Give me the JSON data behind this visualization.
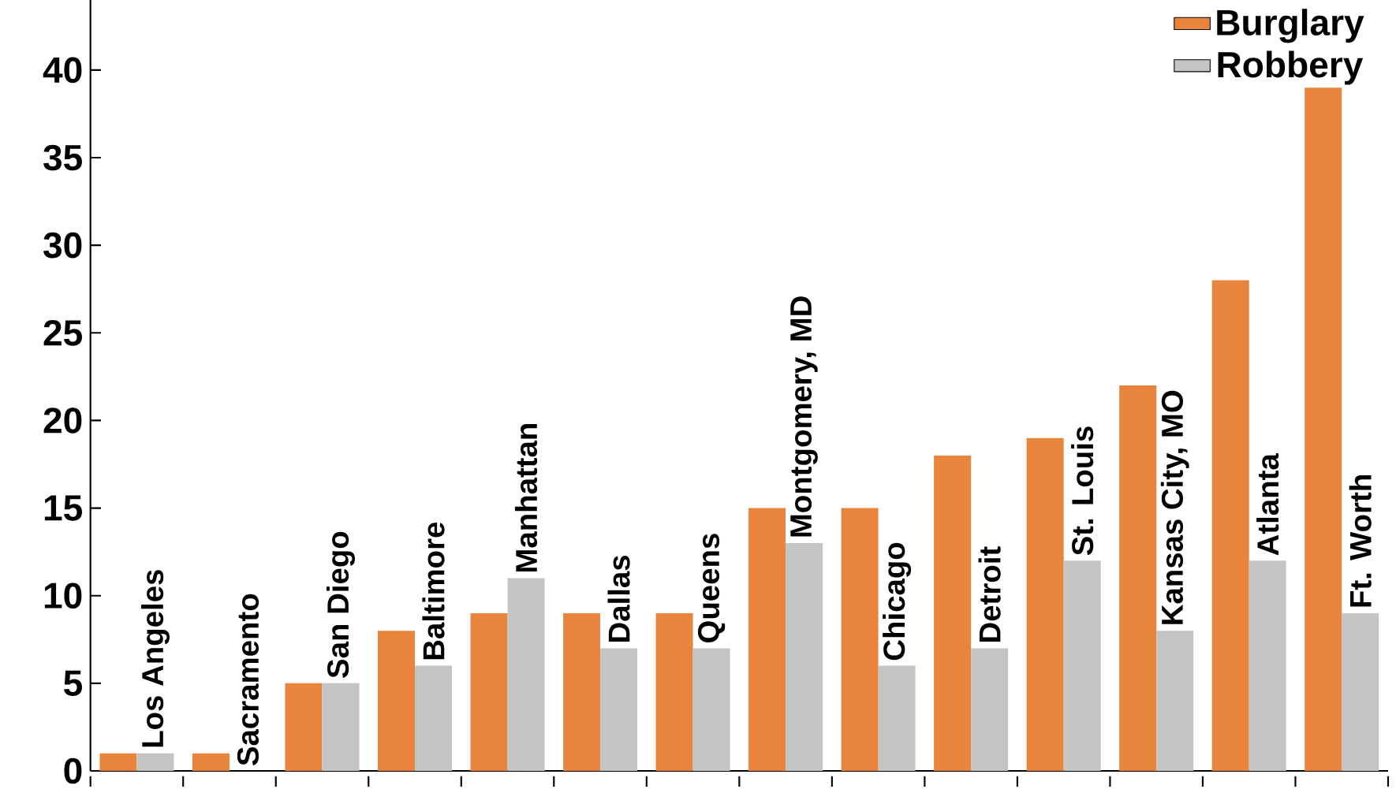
{
  "chart_data": {
    "type": "bar",
    "categories": [
      "Los Angeles",
      "Sacramento",
      "San Diego",
      "Baltimore",
      "Manhattan",
      "Dallas",
      "Queens",
      "Montgomery, MD",
      "Chicago",
      "Detroit",
      "St. Louis",
      "Kansas City, MO",
      "Atlanta",
      "Ft. Worth"
    ],
    "series": [
      {
        "name": "Burglary",
        "color": "#e8843c",
        "values": [
          1,
          1,
          5,
          8,
          9,
          9,
          9,
          15,
          15,
          18,
          19,
          22,
          28,
          39
        ]
      },
      {
        "name": "Robbery",
        "color": "#c4c4c4",
        "values": [
          1,
          null,
          5,
          6,
          11,
          7,
          7,
          13,
          6,
          7,
          12,
          8,
          12,
          9
        ]
      }
    ],
    "ylim": [
      0,
      44
    ],
    "yticks": [
      0,
      5,
      10,
      15,
      20,
      25,
      30,
      35,
      40
    ],
    "grid": false,
    "legend": "top right"
  }
}
